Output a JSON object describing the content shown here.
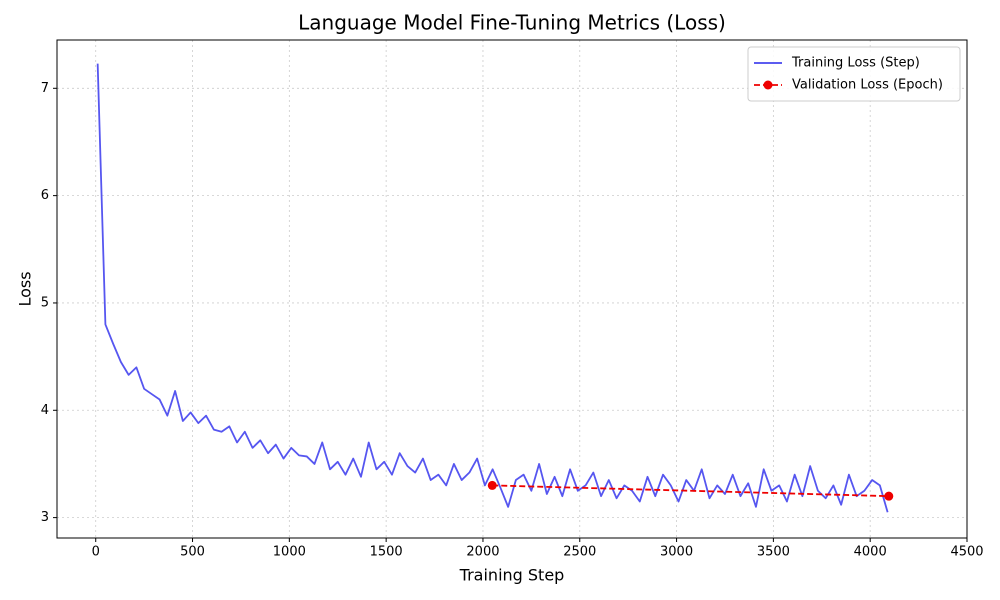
{
  "chart_data": {
    "type": "line",
    "title": "Language Model Fine-Tuning Metrics (Loss)",
    "x_label": "Training Step",
    "y_label": "Loss",
    "xlim": [
      -200,
      4500
    ],
    "ylim": [
      2.81,
      7.45
    ],
    "xticks": [
      0,
      500,
      1000,
      1500,
      2000,
      2500,
      3000,
      3500,
      4000,
      4500
    ],
    "yticks": [
      3,
      4,
      5,
      6,
      7
    ],
    "grid": true,
    "legend": "upper right",
    "series": [
      {
        "name": "Training Loss (Step)",
        "color": "#4444ee",
        "dashed": false,
        "marker": false,
        "x": [
          10,
          50,
          90,
          130,
          170,
          210,
          250,
          290,
          330,
          370,
          410,
          450,
          490,
          530,
          570,
          610,
          650,
          690,
          730,
          770,
          810,
          850,
          890,
          930,
          970,
          1010,
          1050,
          1090,
          1130,
          1170,
          1210,
          1250,
          1290,
          1330,
          1370,
          1410,
          1450,
          1490,
          1530,
          1570,
          1610,
          1650,
          1690,
          1730,
          1770,
          1810,
          1850,
          1890,
          1930,
          1970,
          2010,
          2050,
          2090,
          2130,
          2170,
          2210,
          2250,
          2290,
          2330,
          2370,
          2410,
          2450,
          2490,
          2530,
          2570,
          2610,
          2650,
          2690,
          2730,
          2770,
          2810,
          2850,
          2890,
          2930,
          2970,
          3010,
          3050,
          3090,
          3130,
          3170,
          3210,
          3250,
          3290,
          3330,
          3370,
          3410,
          3450,
          3490,
          3530,
          3570,
          3610,
          3650,
          3690,
          3730,
          3770,
          3810,
          3850,
          3890,
          3930,
          3970,
          4010,
          4050,
          4090
        ],
        "values": [
          7.23,
          4.8,
          4.62,
          4.45,
          4.33,
          4.4,
          4.2,
          4.15,
          4.1,
          3.95,
          4.18,
          3.9,
          3.98,
          3.88,
          3.95,
          3.82,
          3.8,
          3.85,
          3.7,
          3.8,
          3.65,
          3.72,
          3.6,
          3.68,
          3.55,
          3.65,
          3.58,
          3.57,
          3.5,
          3.7,
          3.45,
          3.52,
          3.4,
          3.55,
          3.38,
          3.7,
          3.45,
          3.52,
          3.4,
          3.6,
          3.48,
          3.42,
          3.55,
          3.35,
          3.4,
          3.3,
          3.5,
          3.35,
          3.42,
          3.55,
          3.3,
          3.45,
          3.28,
          3.1,
          3.35,
          3.4,
          3.25,
          3.5,
          3.22,
          3.38,
          3.2,
          3.45,
          3.25,
          3.3,
          3.42,
          3.2,
          3.35,
          3.18,
          3.3,
          3.25,
          3.15,
          3.38,
          3.2,
          3.4,
          3.3,
          3.15,
          3.35,
          3.25,
          3.45,
          3.18,
          3.3,
          3.22,
          3.4,
          3.2,
          3.32,
          3.1,
          3.45,
          3.25,
          3.3,
          3.15,
          3.4,
          3.2,
          3.48,
          3.25,
          3.18,
          3.3,
          3.12,
          3.4,
          3.2,
          3.25,
          3.35,
          3.3,
          3.05
        ]
      },
      {
        "name": "Validation Loss (Epoch)",
        "color": "#ee0000",
        "dashed": true,
        "marker": true,
        "x": [
          2048,
          4096
        ],
        "values": [
          3.3,
          3.2
        ]
      }
    ]
  }
}
